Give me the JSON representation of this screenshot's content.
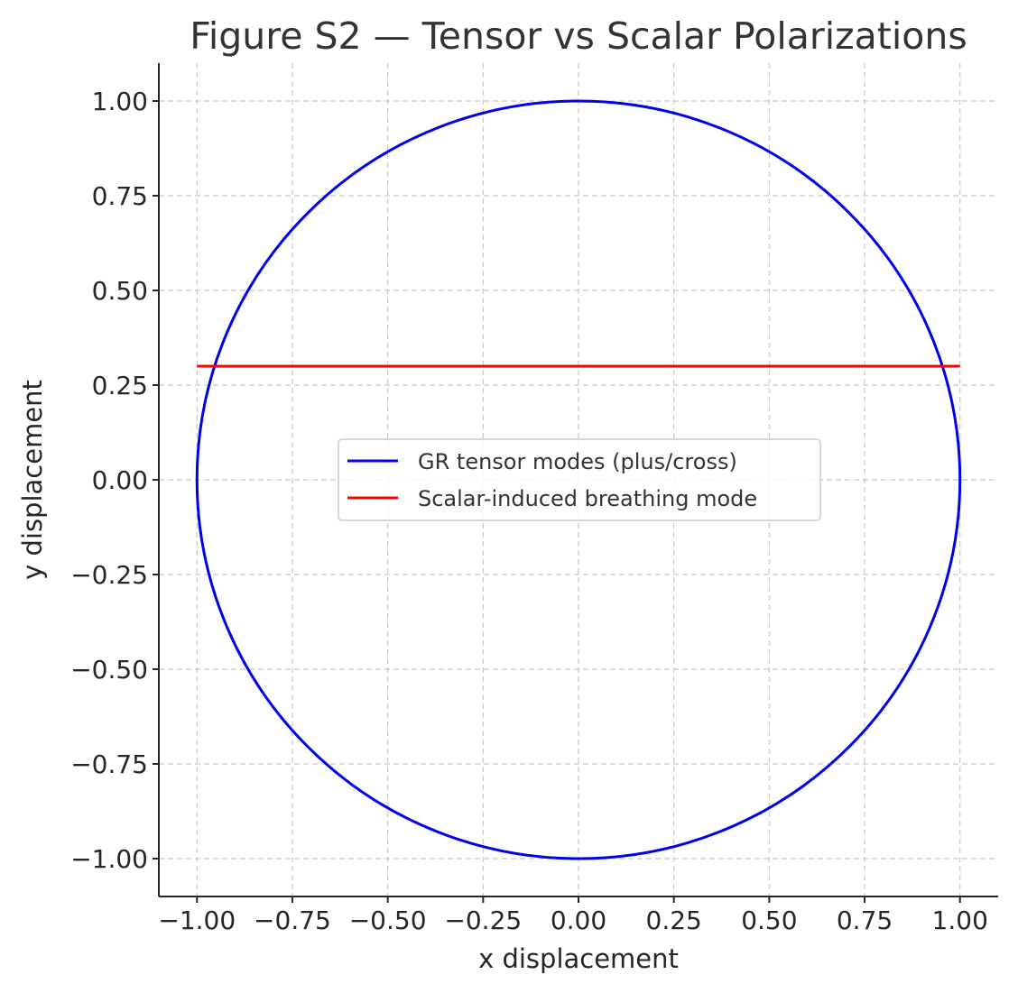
{
  "chart_data": {
    "type": "line",
    "title": "Figure S2 — Tensor vs Scalar Polarizations",
    "xlabel": "x displacement",
    "ylabel": "y displacement",
    "xlim": [
      -1.1,
      1.1
    ],
    "ylim": [
      -1.1,
      1.1
    ],
    "xticks": [
      -1.0,
      -0.75,
      -0.5,
      -0.25,
      0.0,
      0.25,
      0.5,
      0.75,
      1.0
    ],
    "yticks": [
      -1.0,
      -0.75,
      -0.5,
      -0.25,
      0.0,
      0.25,
      0.5,
      0.75,
      1.0
    ],
    "xtick_labels": [
      "−1.00",
      "−0.75",
      "−0.50",
      "−0.25",
      "0.00",
      "0.25",
      "0.50",
      "0.75",
      "1.00"
    ],
    "ytick_labels": [
      "−1.00",
      "−0.75",
      "−0.50",
      "−0.25",
      "0.00",
      "0.25",
      "0.50",
      "0.75",
      "1.00"
    ],
    "grid": true,
    "legend_position": "center",
    "series": [
      {
        "name": "GR tensor modes (plus/cross)",
        "color": "#0000ee",
        "shape": "circle",
        "center": [
          0.0,
          0.0
        ],
        "radius": 1.0
      },
      {
        "name": "Scalar-induced breathing mode",
        "color": "#ff0000",
        "x": [
          -1.0,
          1.0
        ],
        "y": [
          0.3,
          0.3
        ]
      }
    ]
  }
}
